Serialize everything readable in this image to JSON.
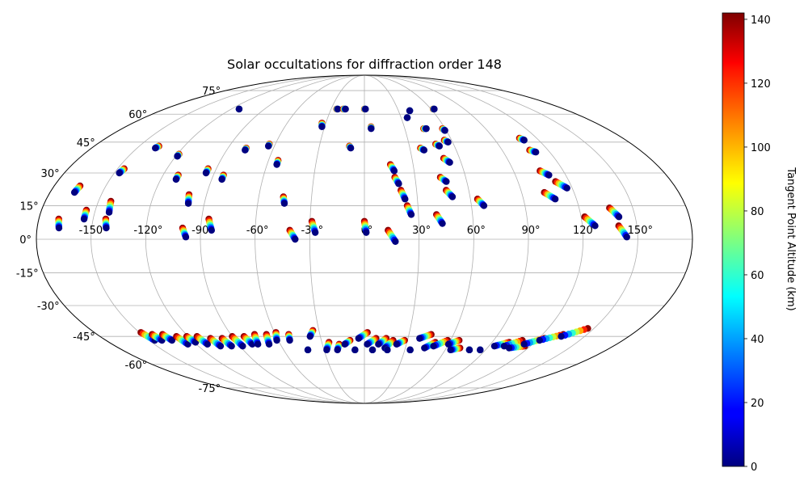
{
  "chart_data": {
    "type": "scatter",
    "projection": "mollweide",
    "title": "Solar occultations for diffraction order 148",
    "longitude_ticks": [
      "-150°",
      "-120°",
      "-90°",
      "-60°",
      "-30°",
      "0°",
      "30°",
      "60°",
      "90°",
      "120°",
      "150°"
    ],
    "latitude_ticks": [
      "-75°",
      "-60°",
      "-45°",
      "-30°",
      "-15°",
      "0°",
      "15°",
      "30°",
      "45°",
      "60°",
      "75°"
    ],
    "grid": true,
    "colorbar": {
      "label": "Tangent Point Altitude (km)",
      "colormap": "jet",
      "range": [
        0,
        142
      ],
      "ticks": [
        "0",
        "20",
        "40",
        "60",
        "80",
        "100",
        "120",
        "140"
      ]
    },
    "north_tracks": [
      {
        "lon": -169,
        "lat": 9,
        "dlon": 1,
        "dlat": -4
      },
      {
        "lon": -165,
        "lat": 24,
        "dlon": -1,
        "dlat": -3
      },
      {
        "lon": -155,
        "lat": 13,
        "dlon": 0,
        "dlat": -4
      },
      {
        "lon": -146,
        "lat": 32,
        "dlon": -1,
        "dlat": -2
      },
      {
        "lon": -143,
        "lat": 17,
        "dlon": 1,
        "dlat": -5
      },
      {
        "lon": -143,
        "lat": 9,
        "dlon": 1,
        "dlat": -4
      },
      {
        "lon": -137,
        "lat": 43,
        "dlon": -1,
        "dlat": -1
      },
      {
        "lon": -119,
        "lat": 39,
        "dlon": 0,
        "dlat": -1
      },
      {
        "lon": -113,
        "lat": 63,
        "dlon": 0,
        "dlat": 0
      },
      {
        "lon": -111,
        "lat": 29,
        "dlon": 0,
        "dlat": -2
      },
      {
        "lon": -100,
        "lat": 5,
        "dlon": 2,
        "dlat": -4
      },
      {
        "lon": -100,
        "lat": 20,
        "dlon": 1,
        "dlat": -4
      },
      {
        "lon": -95,
        "lat": 32,
        "dlon": 0,
        "dlat": -2
      },
      {
        "lon": -86,
        "lat": 9,
        "dlon": 2,
        "dlat": -5
      },
      {
        "lon": -84,
        "lat": 29,
        "dlon": 0,
        "dlat": -2
      },
      {
        "lon": -78,
        "lat": 42,
        "dlon": 0,
        "dlat": -1
      },
      {
        "lon": -64,
        "lat": 44,
        "dlon": 0,
        "dlat": -1
      },
      {
        "lon": -54,
        "lat": 36,
        "dlon": 0,
        "dlat": -2
      },
      {
        "lon": -46,
        "lat": 19,
        "dlon": 1,
        "dlat": -3
      },
      {
        "lon": -41,
        "lat": 4,
        "dlon": 3,
        "dlat": -4
      },
      {
        "lon": -33,
        "lat": 55,
        "dlon": 1,
        "dlat": -2
      },
      {
        "lon": -29,
        "lat": 8,
        "dlon": 2,
        "dlat": -5
      },
      {
        "lon": -25,
        "lat": 63,
        "dlon": 1,
        "dlat": 0
      },
      {
        "lon": -19,
        "lat": 63,
        "dlon": 2,
        "dlat": 0
      },
      {
        "lon": -10,
        "lat": 43,
        "dlon": 1,
        "dlat": -1
      },
      {
        "lon": 0,
        "lat": 8,
        "dlon": 1,
        "dlat": -5
      },
      {
        "lon": 0,
        "lat": 63,
        "dlon": 1,
        "dlat": 0
      },
      {
        "lon": 5,
        "lat": 53,
        "dlon": 0,
        "dlat": -1
      },
      {
        "lon": 13,
        "lat": 4,
        "dlon": 4,
        "dlat": -5
      },
      {
        "lon": 16,
        "lat": 34,
        "dlon": 2,
        "dlat": -3
      },
      {
        "lon": 18,
        "lat": 28,
        "dlon": 2,
        "dlat": -3
      },
      {
        "lon": 21,
        "lat": 22,
        "dlon": 2,
        "dlat": -4
      },
      {
        "lon": 24,
        "lat": 15,
        "dlon": 2,
        "dlat": -4
      },
      {
        "lon": 35,
        "lat": 58,
        "dlon": 0,
        "dlat": 0
      },
      {
        "lon": 37,
        "lat": 42,
        "dlon": 2,
        "dlat": -1
      },
      {
        "lon": 40,
        "lat": 62,
        "dlon": 0,
        "dlat": 0
      },
      {
        "lon": 40,
        "lat": 11,
        "dlon": 3,
        "dlat": -4
      },
      {
        "lon": 44,
        "lat": 52,
        "dlon": 2,
        "dlat": 0
      },
      {
        "lon": 45,
        "lat": 28,
        "dlon": 3,
        "dlat": -2
      },
      {
        "lon": 47,
        "lat": 22,
        "dlon": 3,
        "dlat": -3
      },
      {
        "lon": 48,
        "lat": 44,
        "dlon": 2,
        "dlat": -1
      },
      {
        "lon": 50,
        "lat": 37,
        "dlon": 3,
        "dlat": -2
      },
      {
        "lon": 55,
        "lat": 46,
        "dlon": 2,
        "dlat": -1
      },
      {
        "lon": 58,
        "lat": 52,
        "dlon": 1,
        "dlat": -1
      },
      {
        "lon": 62,
        "lat": 63,
        "dlon": 1,
        "dlat": 0
      },
      {
        "lon": 64,
        "lat": 18,
        "dlon": 3,
        "dlat": -3
      },
      {
        "lon": 103,
        "lat": 21,
        "dlon": 5,
        "dlat": -3
      },
      {
        "lon": 106,
        "lat": 31,
        "dlon": 4,
        "dlat": -2
      },
      {
        "lon": 108,
        "lat": 47,
        "dlon": 2,
        "dlat": -1
      },
      {
        "lon": 108,
        "lat": 41,
        "dlon": 3,
        "dlat": -1
      },
      {
        "lon": 112,
        "lat": 26,
        "dlon": 5,
        "dlat": -3
      },
      {
        "lon": 122,
        "lat": 10,
        "dlon": 5,
        "dlat": -4
      },
      {
        "lon": 137,
        "lat": 14,
        "dlon": 4,
        "dlat": -4
      },
      {
        "lon": 140,
        "lat": 6,
        "dlon": 4,
        "dlat": -5
      }
    ],
    "south_tracks": [
      {
        "lon": -149,
        "lat": -43,
        "dlon": 3,
        "dlat": -4
      },
      {
        "lon": -143,
        "lat": -44,
        "dlon": 2,
        "dlat": -3
      },
      {
        "lon": -136,
        "lat": -44,
        "dlon": 2,
        "dlat": -3
      },
      {
        "lon": -128,
        "lat": -45,
        "dlon": 2,
        "dlat": -4
      },
      {
        "lon": -121,
        "lat": -45,
        "dlon": 2,
        "dlat": -3
      },
      {
        "lon": -114,
        "lat": -45,
        "dlon": 2,
        "dlat": -4
      },
      {
        "lon": -106,
        "lat": -46,
        "dlon": 2,
        "dlat": -4
      },
      {
        "lon": -98,
        "lat": -46,
        "dlon": 2,
        "dlat": -4
      },
      {
        "lon": -90,
        "lat": -45,
        "dlon": 2,
        "dlat": -5
      },
      {
        "lon": -82,
        "lat": -45,
        "dlon": 2,
        "dlat": -4
      },
      {
        "lon": -74,
        "lat": -44,
        "dlon": -2,
        "dlat": -5
      },
      {
        "lon": -66,
        "lat": -44,
        "dlon": -2,
        "dlat": -5
      },
      {
        "lon": -59,
        "lat": -43,
        "dlon": -2,
        "dlat": -4
      },
      {
        "lon": -51,
        "lat": -44,
        "dlon": -1,
        "dlat": -3
      },
      {
        "lon": -42,
        "lat": -52,
        "dlon": 0,
        "dlat": 0
      },
      {
        "lon": -34,
        "lat": -42,
        "dlon": -3,
        "dlat": -3
      },
      {
        "lon": -25,
        "lat": -48,
        "dlon": -3,
        "dlat": -4
      },
      {
        "lon": -18,
        "lat": -49,
        "dlon": -2,
        "dlat": -3
      },
      {
        "lon": -10,
        "lat": -47,
        "dlon": -4,
        "dlat": -2
      },
      {
        "lon": -7,
        "lat": -52,
        "dlon": 0,
        "dlat": 0
      },
      {
        "lon": 2,
        "lat": -43,
        "dlon": -6,
        "dlat": -3
      },
      {
        "lon": 8,
        "lat": -46,
        "dlon": -6,
        "dlat": -3
      },
      {
        "lon": 15,
        "lat": -46,
        "dlon": -5,
        "dlat": -3
      },
      {
        "lon": 20,
        "lat": -47,
        "dlon": -5,
        "dlat": -4
      },
      {
        "lon": 28,
        "lat": -47,
        "dlon": -5,
        "dlat": -2
      },
      {
        "lon": 6,
        "lat": -52,
        "dlon": 0,
        "dlat": 0
      },
      {
        "lon": 17,
        "lat": -52,
        "dlon": 0,
        "dlat": 0
      },
      {
        "lon": 34,
        "lat": -52,
        "dlon": 0,
        "dlat": 0
      },
      {
        "lon": 45,
        "lat": -44,
        "dlon": -7,
        "dlat": -2
      },
      {
        "lon": 50,
        "lat": -48,
        "dlon": -6,
        "dlat": -3
      },
      {
        "lon": 58,
        "lat": -47,
        "dlon": -8,
        "dlat": -3
      },
      {
        "lon": 66,
        "lat": -47,
        "dlon": -6,
        "dlat": -2
      },
      {
        "lon": 70,
        "lat": -51,
        "dlon": -6,
        "dlat": -1
      },
      {
        "lon": 78,
        "lat": -52,
        "dlon": 0,
        "dlat": 0
      },
      {
        "lon": 86,
        "lat": -52,
        "dlon": 0,
        "dlat": 0
      },
      {
        "lon": 102,
        "lat": -48,
        "dlon": -8,
        "dlat": -2
      },
      {
        "lon": 110,
        "lat": -47,
        "dlon": -9,
        "dlat": -3
      },
      {
        "lon": 116,
        "lat": -50,
        "dlon": -10,
        "dlat": -1
      },
      {
        "lon": 124,
        "lat": -46,
        "dlon": -10,
        "dlat": -3
      },
      {
        "lon": 134,
        "lat": -44,
        "dlon": -12,
        "dlat": -3
      },
      {
        "lon": 146,
        "lat": -41,
        "dlon": -12,
        "dlat": -4
      }
    ]
  }
}
